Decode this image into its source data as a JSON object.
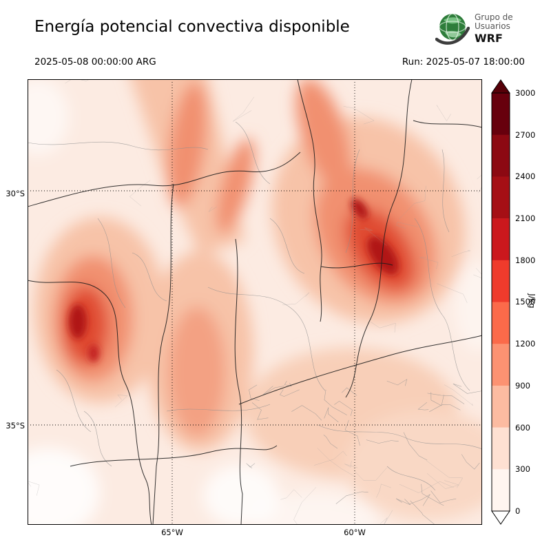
{
  "header": {
    "title": "Energía potencial convectiva disponible",
    "valid_datetime": "2025-05-08 00:00:00 ARG",
    "run_label": "Run: 2025-05-07 18:00:00",
    "logo": {
      "line1": "Grupo de",
      "line2": "Usuarios",
      "line3": "WRF"
    }
  },
  "map": {
    "lat_labels": [
      "30°S",
      "35°S"
    ],
    "lon_labels": [
      "65°W",
      "60°W"
    ]
  },
  "colorbar": {
    "unit": "J/kg",
    "tick_labels": [
      "3000",
      "2700",
      "2400",
      "2100",
      "1800",
      "1500",
      "1200",
      "900",
      "600",
      "300",
      "0"
    ],
    "segment_colors_top_to_bottom": [
      "#67000d",
      "#8c0912",
      "#a50f15",
      "#cb181d",
      "#ef3b2c",
      "#fb6a4a",
      "#fc9272",
      "#fcbba1",
      "#fee0d2",
      "#fff5f0"
    ],
    "arrow_over_color": "#560008",
    "arrow_under_color": "#ffffff"
  },
  "chart_data": {
    "type": "heatmap",
    "title": "Energía potencial convectiva disponible",
    "units": "J/kg",
    "levels": [
      0,
      300,
      600,
      900,
      1200,
      1500,
      1800,
      2100,
      2400,
      2700,
      3000
    ],
    "lat_ticks": [
      "30°S",
      "35°S"
    ],
    "lon_ticks": [
      "65°W",
      "60°W"
    ],
    "valid": "2025-05-08 00:00:00 ARG",
    "run": "Run: 2025-05-07 18:00:00",
    "high_value_regions": [
      "northeast band near 30°S/59°W up to ~2400 J/kg",
      "west-central region near 32°S/66°W up to ~2100 J/kg",
      "northern streaks ~900-1500 J/kg"
    ],
    "legend_position": "right"
  }
}
